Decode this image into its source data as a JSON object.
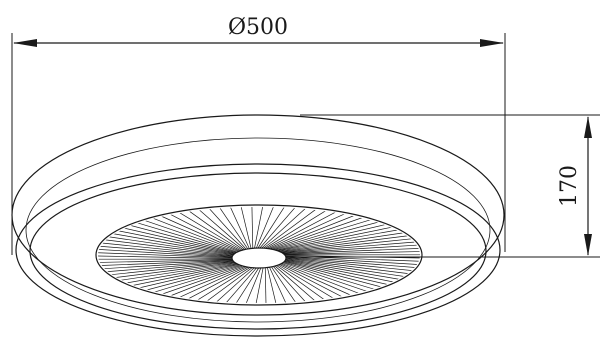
{
  "drawing": {
    "width_dimension": "Ø500",
    "height_dimension": "170",
    "line_color": "#1a1a1a",
    "background_color": "#ffffff",
    "blade_count": 96
  }
}
